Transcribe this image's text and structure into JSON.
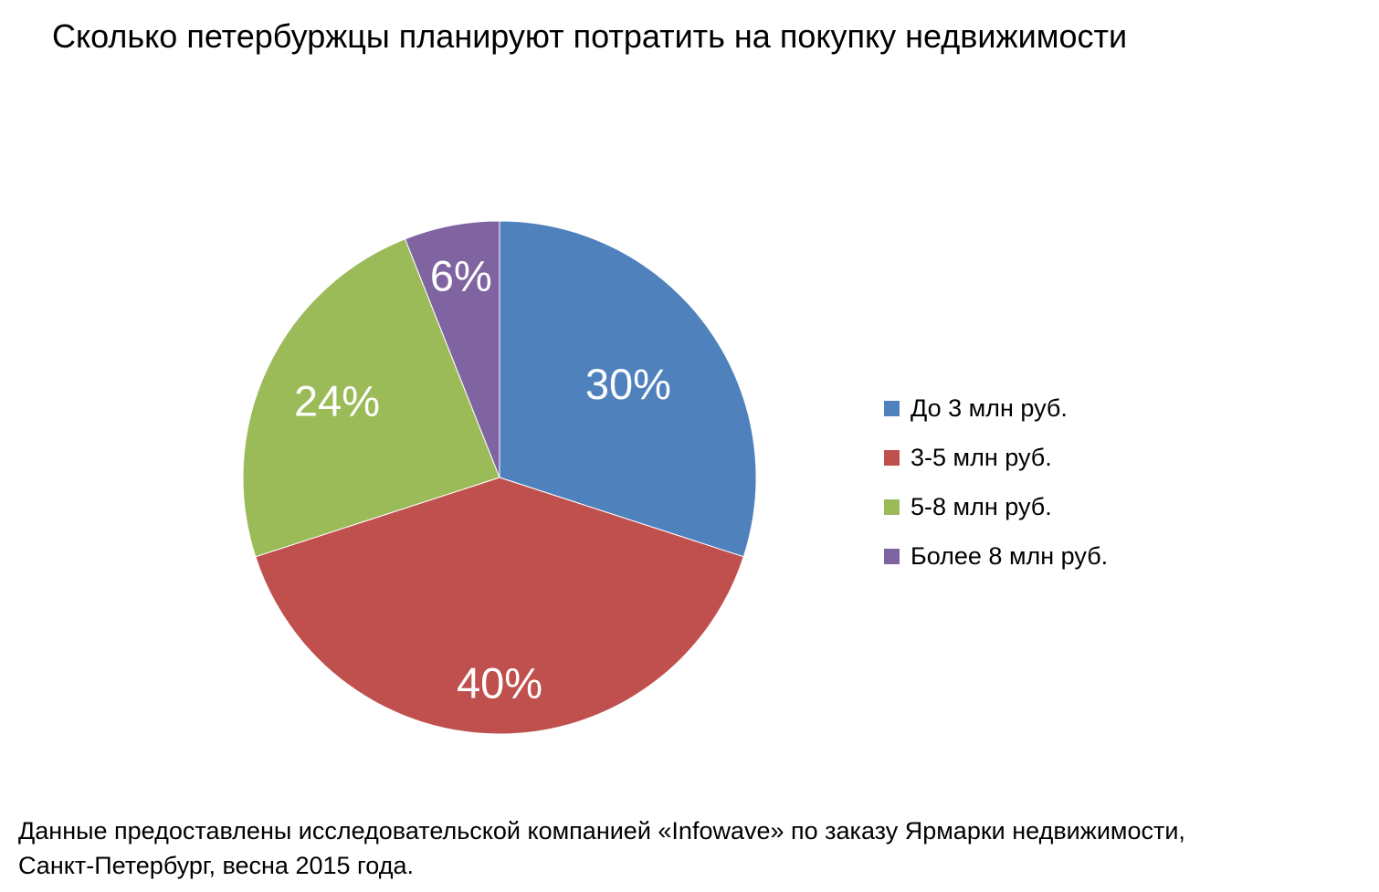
{
  "chart_data": {
    "type": "pie",
    "title": "Сколько петербуржцы планируют потратить на покупку недвижимости",
    "categories": [
      "До 3 млн руб.",
      "3-5 млн руб.",
      "5-8 млн руб.",
      "Более 8 млн руб."
    ],
    "values": [
      30,
      40,
      24,
      6
    ],
    "data_labels": [
      "30%",
      "40%",
      "24%",
      "6%"
    ],
    "colors": [
      "#4F81BD",
      "#C0504D",
      "#9BBB59",
      "#8064A2"
    ],
    "legend_position": "right",
    "start_angle": "12 o'clock, clockwise"
  },
  "footer": {
    "line1": "Данные предоставлены исследовательской компанией «Infowave» по заказу Ярмарки недвижимости,",
    "line2": "Санкт-Петербург, весна 2015 года."
  }
}
